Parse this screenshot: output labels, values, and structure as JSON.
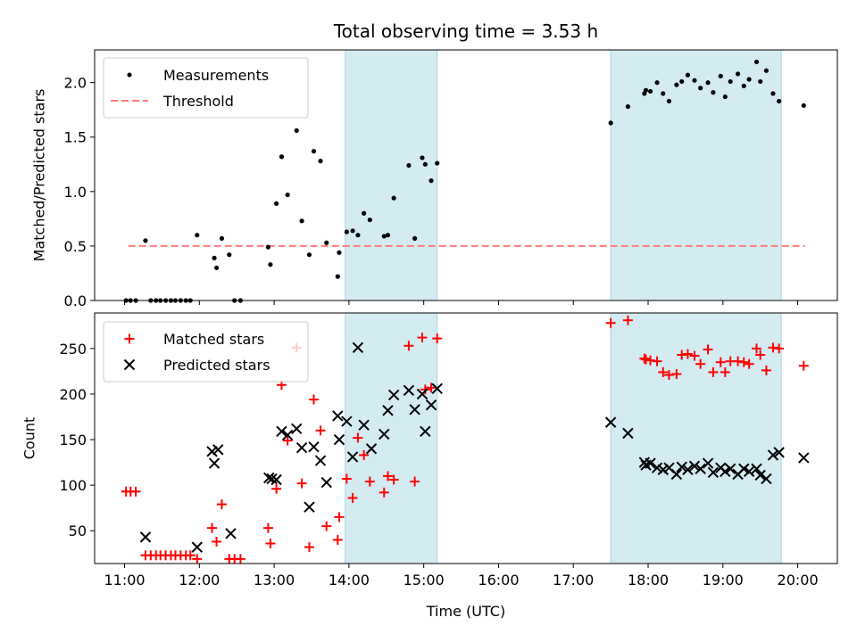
{
  "chart_data": [
    {
      "type": "scatter",
      "title": "Total observing time = 3.53 h",
      "xlabel": "",
      "ylabel": "Matched/Predicted stars",
      "xlim": [
        10.6,
        20.53
      ],
      "ylim": [
        0,
        2.3
      ],
      "yticks": [
        0.0,
        0.5,
        1.0,
        1.5,
        2.0
      ],
      "ytick_labels": [
        "0.0",
        "0.5",
        "1.0",
        "1.5",
        "2.0"
      ],
      "xticks": [
        11,
        12,
        13,
        14,
        15,
        16,
        17,
        18,
        19,
        20
      ],
      "shaded_spans": [
        [
          13.95,
          15.18
        ],
        [
          17.5,
          19.78
        ]
      ],
      "legend": {
        "placement": "upper-left",
        "entries": [
          "Measurements",
          "Threshold"
        ]
      },
      "series": [
        {
          "name": "Measurements",
          "marker": "dot",
          "color": "#000000",
          "x": [
            11.02,
            11.08,
            11.15,
            11.28,
            11.35,
            11.42,
            11.48,
            11.55,
            11.62,
            11.68,
            11.75,
            11.82,
            11.88,
            11.97,
            12.2,
            12.23,
            12.3,
            12.4,
            12.47,
            12.55,
            12.92,
            12.95,
            13.03,
            13.1,
            13.18,
            13.3,
            13.37,
            13.47,
            13.53,
            13.62,
            13.7,
            13.85,
            13.87,
            13.97,
            14.05,
            14.12,
            14.2,
            14.28,
            14.47,
            14.52,
            14.6,
            14.8,
            14.88,
            14.98,
            15.02,
            15.1,
            15.18,
            17.5,
            17.73,
            17.95,
            17.97,
            18.03,
            18.12,
            18.2,
            18.28,
            18.38,
            18.45,
            18.53,
            18.62,
            18.7,
            18.8,
            18.87,
            18.97,
            19.03,
            19.1,
            19.2,
            19.28,
            19.35,
            19.45,
            19.5,
            19.58,
            19.67,
            19.75,
            20.08
          ],
          "y": [
            0.0,
            0.0,
            0.0,
            0.55,
            0.0,
            0.0,
            0.0,
            0.0,
            0.0,
            0.0,
            0.0,
            0.0,
            0.0,
            0.6,
            0.39,
            0.3,
            0.57,
            0.42,
            0.0,
            0.0,
            0.49,
            0.33,
            0.89,
            1.32,
            0.97,
            1.56,
            0.73,
            0.42,
            1.37,
            1.28,
            0.53,
            0.22,
            0.44,
            0.63,
            0.64,
            0.6,
            0.8,
            0.74,
            0.59,
            0.6,
            0.94,
            1.24,
            0.57,
            1.31,
            1.25,
            1.1,
            1.26,
            1.63,
            1.78,
            1.9,
            1.93,
            1.92,
            2.0,
            1.9,
            1.83,
            1.98,
            2.01,
            2.07,
            2.02,
            1.95,
            2.0,
            1.91,
            2.06,
            1.87,
            2.01,
            2.08,
            1.97,
            2.03,
            2.19,
            2.01,
            2.11,
            1.9,
            1.83,
            1.79
          ]
        },
        {
          "name": "Threshold",
          "marker": "dashed-line",
          "color": "#ff7b7b",
          "x": [
            11.05,
            20.1
          ],
          "y": [
            0.5,
            0.5
          ]
        }
      ]
    },
    {
      "type": "scatter",
      "title": "",
      "xlabel": "Time (UTC)",
      "ylabel": "Count",
      "xlim": [
        10.6,
        20.53
      ],
      "ylim": [
        14,
        289
      ],
      "yticks": [
        50,
        100,
        150,
        200,
        250
      ],
      "ytick_labels": [
        "50",
        "100",
        "150",
        "200",
        "250"
      ],
      "xticks": [
        11,
        12,
        13,
        14,
        15,
        16,
        17,
        18,
        19,
        20
      ],
      "xtick_labels": [
        "11:00",
        "12:00",
        "13:00",
        "14:00",
        "15:00",
        "16:00",
        "17:00",
        "18:00",
        "19:00",
        "20:00"
      ],
      "shaded_spans": [
        [
          13.95,
          15.18
        ],
        [
          17.5,
          19.78
        ]
      ],
      "legend": {
        "placement": "upper-left",
        "entries": [
          "Matched stars",
          "Predicted stars"
        ]
      },
      "series": [
        {
          "name": "Matched stars",
          "marker": "plus",
          "color": "#ff0000",
          "x": [
            11.02,
            11.08,
            11.15,
            11.28,
            11.35,
            11.42,
            11.48,
            11.55,
            11.62,
            11.68,
            11.75,
            11.82,
            11.88,
            11.97,
            12.17,
            12.23,
            12.3,
            12.4,
            12.47,
            12.55,
            12.92,
            12.95,
            13.03,
            13.1,
            13.18,
            13.3,
            13.37,
            13.47,
            13.53,
            13.62,
            13.7,
            13.85,
            13.87,
            13.97,
            14.05,
            14.12,
            14.2,
            14.28,
            14.47,
            14.52,
            14.6,
            14.8,
            14.88,
            14.98,
            15.02,
            15.1,
            15.18,
            17.5,
            17.73,
            17.95,
            17.97,
            18.03,
            18.12,
            18.2,
            18.28,
            18.38,
            18.45,
            18.53,
            18.62,
            18.7,
            18.8,
            18.87,
            18.97,
            19.03,
            19.1,
            19.2,
            19.28,
            19.35,
            19.45,
            19.5,
            19.58,
            19.67,
            19.75,
            20.08
          ],
          "y": [
            93,
            93,
            93,
            23,
            23,
            23,
            23,
            23,
            23,
            23,
            23,
            23,
            23,
            19,
            53,
            38,
            79,
            19,
            19,
            19,
            53,
            36,
            96,
            210,
            149,
            251,
            102,
            32,
            194,
            160,
            55,
            40,
            65,
            107,
            86,
            152,
            133,
            104,
            92,
            110,
            106,
            253,
            104,
            262,
            205,
            207,
            261,
            278,
            281,
            239,
            238,
            237,
            236,
            224,
            221,
            222,
            243,
            244,
            242,
            233,
            249,
            224,
            235,
            224,
            236,
            236,
            235,
            233,
            250,
            243,
            226,
            251,
            250,
            231
          ]
        },
        {
          "name": "Predicted stars",
          "marker": "x",
          "color": "#000000",
          "x": [
            11.28,
            11.97,
            12.17,
            12.2,
            12.25,
            12.42,
            12.93,
            12.97,
            13.03,
            13.1,
            13.18,
            13.3,
            13.37,
            13.47,
            13.53,
            13.62,
            13.7,
            13.85,
            13.87,
            13.97,
            14.05,
            14.12,
            14.2,
            14.3,
            14.47,
            14.52,
            14.6,
            14.8,
            14.88,
            14.98,
            15.02,
            15.1,
            15.18,
            17.5,
            17.73,
            17.95,
            17.97,
            18.03,
            18.12,
            18.2,
            18.28,
            18.38,
            18.45,
            18.53,
            18.62,
            18.7,
            18.8,
            18.87,
            18.97,
            19.03,
            19.1,
            19.2,
            19.28,
            19.35,
            19.45,
            19.5,
            19.58,
            19.67,
            19.75,
            20.08
          ],
          "y": [
            43,
            32,
            137,
            124,
            139,
            47,
            108,
            107,
            106,
            159,
            155,
            162,
            141,
            76,
            142,
            127,
            103,
            176,
            150,
            170,
            131,
            251,
            166,
            140,
            156,
            182,
            199,
            204,
            183,
            200,
            159,
            188,
            206,
            169,
            157,
            125,
            122,
            124,
            119,
            117,
            119,
            112,
            120,
            117,
            121,
            118,
            124,
            114,
            119,
            115,
            118,
            112,
            118,
            115,
            118,
            111,
            107,
            133,
            136,
            130
          ]
        }
      ]
    }
  ]
}
